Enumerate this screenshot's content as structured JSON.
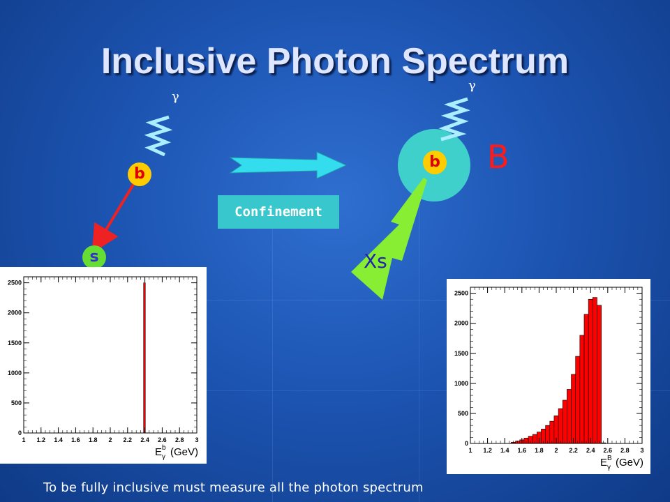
{
  "slide": {
    "title": "Inclusive Photon Spectrum",
    "footer": "To be fully inclusive must measure all the photon spectrum"
  },
  "diagram": {
    "quark_b_left": "b",
    "quark_s": "s",
    "gamma_left": "γ",
    "confinement_label": "Confinement",
    "quark_b_right": "b",
    "gamma_right": "γ",
    "meson_label": "B",
    "xs_label": "Xs",
    "colors": {
      "quark": "#ffcc00",
      "quark_text": "#dd0000",
      "s_quark": "#66dd33",
      "meson_cloud": "#40d0cc",
      "arrow": "#33ddee",
      "xs_jet": "#88ee33",
      "photon": "#aaeeff",
      "histogram_fill": "#ff0000"
    }
  },
  "chart_data": [
    {
      "type": "bar",
      "xlabel_main": "E",
      "xlabel_sup": "b",
      "xlabel_sub": "γ",
      "xlabel_unit": "(GeV)",
      "xlim": [
        1,
        3
      ],
      "ylim": [
        0,
        2600
      ],
      "xticks": [
        "1",
        "1.2",
        "1.4",
        "1.6",
        "1.8",
        "2",
        "2.2",
        "2.4",
        "2.6",
        "2.8",
        "3"
      ],
      "yticks": [
        "0",
        "500",
        "1000",
        "1500",
        "2000",
        "2500"
      ],
      "bins": {
        "x": [
          2.395
        ],
        "y": [
          2500
        ],
        "width": 0.02
      }
    },
    {
      "type": "bar",
      "xlabel_main": "E",
      "xlabel_sup": "B",
      "xlabel_sub": "γ",
      "xlabel_unit": "(GeV)",
      "xlim": [
        1,
        3
      ],
      "ylim": [
        0,
        2600
      ],
      "xticks": [
        "1",
        "1.2",
        "1.4",
        "1.6",
        "1.8",
        "2",
        "2.2",
        "2.4",
        "2.6",
        "2.8",
        "3"
      ],
      "yticks": [
        "0",
        "500",
        "1000",
        "1500",
        "2000",
        "2500"
      ],
      "bins": {
        "x": [
          1.5,
          1.55,
          1.6,
          1.65,
          1.7,
          1.75,
          1.8,
          1.85,
          1.9,
          1.95,
          2.0,
          2.05,
          2.1,
          2.15,
          2.2,
          2.25,
          2.3,
          2.35,
          2.4,
          2.45,
          2.5,
          2.55
        ],
        "y": [
          20,
          40,
          60,
          90,
          120,
          150,
          190,
          240,
          300,
          370,
          460,
          580,
          720,
          900,
          1150,
          1450,
          1800,
          2150,
          2400,
          2430,
          2300,
          10
        ],
        "width": 0.05
      }
    }
  ]
}
